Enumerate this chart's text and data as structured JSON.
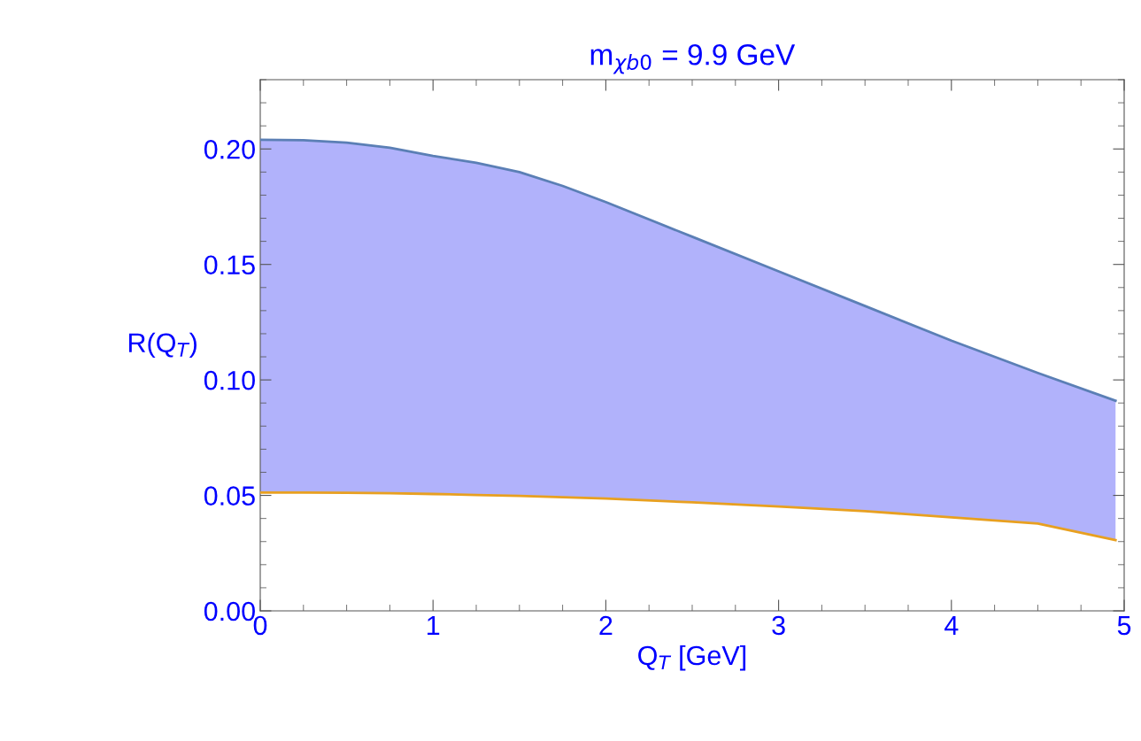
{
  "chart_data": {
    "type": "line",
    "title": "m$_{χb0}$ = 9.9 GeV",
    "xlabel": "Q$_{T}$ [GeV]",
    "ylabel": "R(Q$_{T}$)",
    "x": [
      0,
      0.25,
      0.5,
      0.75,
      1,
      1.25,
      1.5,
      1.75,
      2,
      2.5,
      3,
      3.5,
      4,
      4.5,
      4.95
    ],
    "series": [
      {
        "color": "#5b7fb5",
        "values": [
          0.204,
          0.2038,
          0.2027,
          0.2005,
          0.197,
          0.194,
          0.19,
          0.184,
          0.177,
          0.162,
          0.147,
          0.132,
          0.117,
          0.103,
          0.091
        ],
        "lower": [
          0.0512,
          0.0512,
          0.0511,
          0.0509,
          0.0506,
          0.0502,
          0.0498,
          0.0492,
          0.0486,
          0.047,
          0.0452,
          0.0432,
          0.0405,
          0.0378,
          0.0306
        ],
        "upper": [
          0.204,
          0.2038,
          0.2027,
          0.2005,
          0.197,
          0.194,
          0.19,
          0.184,
          0.177,
          0.162,
          0.147,
          0.132,
          0.117,
          0.103,
          0.091
        ]
      },
      {
        "color": "#e8a020",
        "values": [
          0.0512,
          0.0512,
          0.0511,
          0.0509,
          0.0506,
          0.0502,
          0.0498,
          0.0492,
          0.0486,
          0.047,
          0.0452,
          0.0432,
          0.0405,
          0.0378,
          0.0306
        ]
      }
    ],
    "xlim": [
      0,
      5
    ],
    "ylim": [
      0,
      0.23
    ],
    "xticks": [
      0,
      1,
      2,
      3,
      4,
      5
    ],
    "yticks": [
      {
        "value": 0,
        "label": "0.00"
      },
      {
        "value": 0.05,
        "label": "0.05"
      },
      {
        "value": 0.1,
        "label": "0.10"
      },
      {
        "value": 0.15,
        "label": "0.15"
      },
      {
        "value": 0.2,
        "label": "0.20"
      }
    ],
    "grid": false,
    "legend": false
  }
}
